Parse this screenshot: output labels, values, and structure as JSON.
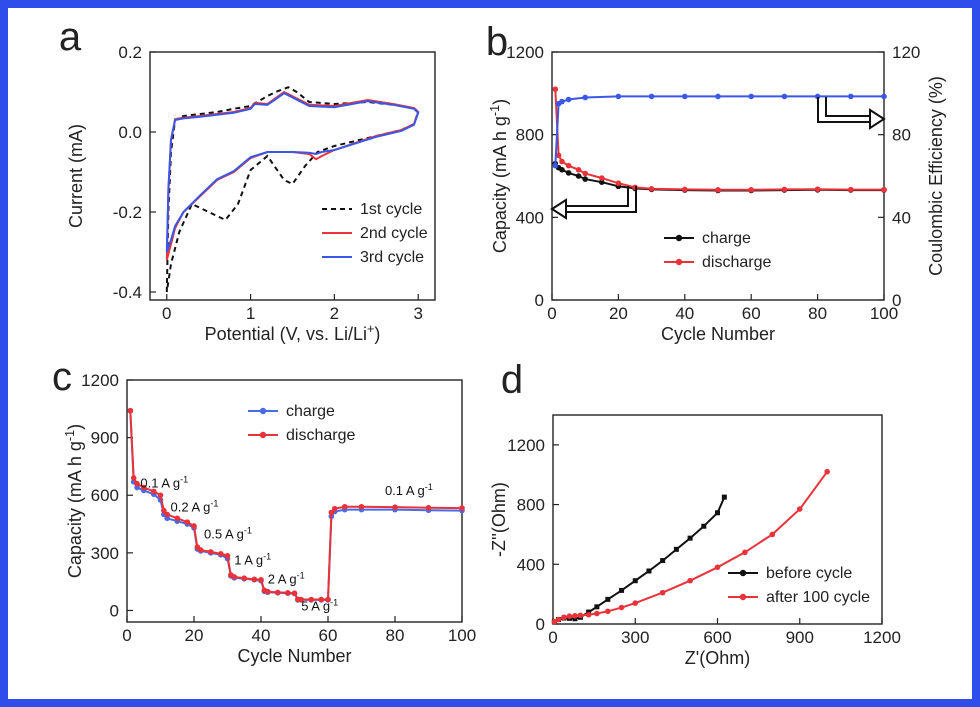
{
  "chart_data": [
    {
      "panel": "a",
      "type": "line",
      "xlabel": "Potential (V, vs. Li/Li",
      "xlabel_sup": "+",
      "xlabel_end": ")",
      "ylabel": "Current (mA)",
      "xlim": [
        -0.2,
        3.2
      ],
      "ylim": [
        -0.42,
        0.2
      ],
      "xticks": [
        0,
        1,
        2,
        3
      ],
      "yticks": [
        0.2,
        0.0,
        -0.2,
        -0.4
      ],
      "ytick_labels": [
        "0.2",
        "0.0",
        "-0.2",
        "-0.4"
      ],
      "legend_position": "bottom-right",
      "series": [
        {
          "name": "1st cycle",
          "color": "#111111",
          "style": "dashed",
          "x": [
            0.0,
            0.02,
            0.05,
            0.1,
            0.2,
            0.4,
            0.6,
            0.8,
            1.0,
            1.2,
            1.3,
            1.45,
            1.55,
            1.7,
            2.0,
            2.4,
            2.7,
            2.95,
            3.0,
            2.95,
            2.8,
            2.5,
            2.0,
            1.8,
            1.65,
            1.5,
            1.4,
            1.2,
            1.0,
            0.85,
            0.7,
            0.5,
            0.3,
            0.15,
            0.05,
            0.0
          ],
          "y": [
            -0.4,
            -0.2,
            -0.05,
            0.03,
            0.04,
            0.045,
            0.05,
            0.058,
            0.065,
            0.09,
            0.1,
            0.112,
            0.1,
            0.075,
            0.07,
            0.075,
            0.068,
            0.06,
            0.05,
            0.02,
            0.005,
            -0.01,
            -0.035,
            -0.05,
            -0.085,
            -0.13,
            -0.12,
            -0.06,
            -0.095,
            -0.18,
            -0.22,
            -0.2,
            -0.18,
            -0.25,
            -0.33,
            -0.4
          ]
        },
        {
          "name": "2nd cycle",
          "color": "#e8333a",
          "style": "solid",
          "x": [
            0.0,
            0.02,
            0.05,
            0.1,
            0.2,
            0.4,
            0.6,
            0.8,
            1.0,
            1.05,
            1.2,
            1.3,
            1.4,
            1.7,
            2.0,
            2.4,
            2.7,
            2.95,
            3.0,
            2.95,
            2.8,
            2.5,
            2.0,
            1.85,
            1.78,
            1.7,
            1.5,
            1.2,
            1.0,
            0.8,
            0.6,
            0.4,
            0.2,
            0.1,
            0.05,
            0.0
          ],
          "y": [
            -0.32,
            -0.15,
            -0.02,
            0.032,
            0.036,
            0.04,
            0.045,
            0.05,
            0.06,
            0.073,
            0.07,
            0.085,
            0.1,
            0.068,
            0.065,
            0.08,
            0.07,
            0.06,
            0.05,
            0.02,
            0.005,
            -0.01,
            -0.045,
            -0.06,
            -0.068,
            -0.055,
            -0.05,
            -0.05,
            -0.065,
            -0.1,
            -0.12,
            -0.16,
            -0.2,
            -0.24,
            -0.28,
            -0.32
          ]
        },
        {
          "name": "3rd cycle",
          "color": "#3a57e6",
          "style": "solid",
          "x": [
            0.0,
            0.02,
            0.05,
            0.1,
            0.2,
            0.4,
            0.6,
            0.8,
            1.0,
            1.05,
            1.2,
            1.3,
            1.4,
            1.7,
            2.0,
            2.4,
            2.7,
            2.95,
            3.0,
            2.95,
            2.8,
            2.5,
            2.0,
            1.85,
            1.78,
            1.7,
            1.5,
            1.2,
            1.0,
            0.8,
            0.6,
            0.4,
            0.2,
            0.1,
            0.05,
            0.0
          ],
          "y": [
            -0.3,
            -0.14,
            -0.02,
            0.03,
            0.034,
            0.038,
            0.043,
            0.048,
            0.058,
            0.07,
            0.068,
            0.082,
            0.097,
            0.065,
            0.062,
            0.077,
            0.068,
            0.058,
            0.048,
            0.018,
            0.003,
            -0.012,
            -0.045,
            -0.05,
            -0.055,
            -0.052,
            -0.05,
            -0.05,
            -0.063,
            -0.098,
            -0.118,
            -0.158,
            -0.2,
            -0.235,
            -0.27,
            -0.3
          ]
        }
      ]
    },
    {
      "panel": "b",
      "type": "line",
      "xlabel": "Cycle Number",
      "ylabel": "Capacity (mA h g",
      "ylabel_sup": "-1",
      "ylabel_end": ")",
      "y2label": "Coulombic Efficiency (%)",
      "xlim": [
        0,
        100
      ],
      "ylim": [
        0,
        1200
      ],
      "y2lim": [
        0,
        120
      ],
      "xticks": [
        0,
        20,
        40,
        60,
        80,
        100
      ],
      "yticks": [
        0,
        400,
        800,
        1200
      ],
      "y2ticks": [
        0,
        40,
        80,
        120
      ],
      "legend_position": "bottom-center",
      "series": [
        {
          "name": "charge",
          "color": "#111111",
          "axis": "left",
          "x": [
            1,
            2,
            3,
            5,
            8,
            10,
            15,
            20,
            25,
            30,
            40,
            50,
            60,
            70,
            80,
            90,
            100
          ],
          "y": [
            660,
            640,
            630,
            615,
            600,
            585,
            570,
            550,
            540,
            535,
            532,
            530,
            530,
            532,
            533,
            532,
            532
          ]
        },
        {
          "name": "discharge",
          "color": "#e8333a",
          "axis": "left",
          "x": [
            1,
            2,
            3,
            5,
            8,
            10,
            15,
            20,
            25,
            30,
            40,
            50,
            60,
            70,
            80,
            90,
            100
          ],
          "y": [
            1020,
            700,
            670,
            650,
            630,
            612,
            590,
            565,
            545,
            538,
            535,
            533,
            533,
            535,
            536,
            534,
            534
          ]
        },
        {
          "name": "",
          "color": "#3a57e6",
          "axis": "right",
          "x": [
            1,
            2,
            3,
            5,
            10,
            20,
            30,
            40,
            50,
            60,
            70,
            80,
            90,
            100
          ],
          "y": [
            65,
            95,
            96,
            97,
            98,
            98.5,
            98.5,
            98.5,
            98.5,
            98.5,
            98.5,
            98.5,
            98.5,
            98.5
          ]
        }
      ]
    },
    {
      "panel": "c",
      "type": "line",
      "xlabel": "Cycle Number",
      "ylabel": "Capacity (mA h g",
      "ylabel_sup": "-1",
      "ylabel_end": ")",
      "xlim": [
        0,
        100
      ],
      "ylim": [
        -60,
        1200
      ],
      "xticks": [
        0,
        20,
        40,
        60,
        80,
        100
      ],
      "yticks": [
        0,
        300,
        600,
        900,
        1200
      ],
      "legend_position": "top-center",
      "annotations": [
        {
          "text": "0.1 A g",
          "sup": "-1",
          "x": 4,
          "y": 640
        },
        {
          "text": "0.2 A g",
          "sup": "-1",
          "x": 13,
          "y": 515
        },
        {
          "text": "0.5 A g",
          "sup": "-1",
          "x": 23,
          "y": 375
        },
        {
          "text": "1 A g",
          "sup": "-1",
          "x": 32,
          "y": 240
        },
        {
          "text": "2 A g",
          "sup": "-1",
          "x": 42,
          "y": 140
        },
        {
          "text": "5 A g",
          "sup": "-1",
          "x": 52,
          "y": 0
        },
        {
          "text": "0.1 A g",
          "sup": "-1",
          "x": 77,
          "y": 600
        }
      ],
      "series": [
        {
          "name": "charge",
          "color": "#4a6be8",
          "x": [
            1,
            2,
            3,
            5,
            8,
            10,
            11,
            12,
            15,
            18,
            20,
            21,
            22,
            25,
            28,
            30,
            31,
            32,
            35,
            38,
            40,
            41,
            42,
            45,
            48,
            50,
            51,
            52,
            55,
            58,
            60,
            61,
            62,
            65,
            70,
            80,
            90,
            100
          ],
          "y": [
            1040,
            670,
            640,
            625,
            605,
            575,
            500,
            480,
            465,
            450,
            430,
            320,
            310,
            300,
            290,
            270,
            180,
            170,
            165,
            160,
            155,
            100,
            95,
            92,
            90,
            88,
            55,
            55,
            55,
            55,
            55,
            490,
            515,
            525,
            525,
            525,
            522,
            520
          ]
        },
        {
          "name": "discharge",
          "color": "#e8333a",
          "x": [
            1,
            2,
            3,
            5,
            8,
            10,
            11,
            12,
            15,
            18,
            20,
            21,
            22,
            25,
            28,
            30,
            31,
            32,
            35,
            38,
            40,
            41,
            42,
            45,
            48,
            50,
            51,
            52,
            55,
            58,
            60,
            61,
            62,
            65,
            70,
            80,
            90,
            100
          ],
          "y": [
            1040,
            690,
            660,
            640,
            620,
            600,
            520,
            500,
            480,
            460,
            440,
            330,
            315,
            305,
            295,
            285,
            185,
            175,
            168,
            162,
            160,
            105,
            98,
            94,
            92,
            90,
            58,
            57,
            57,
            57,
            57,
            510,
            530,
            540,
            540,
            538,
            535,
            533
          ]
        }
      ]
    },
    {
      "panel": "d",
      "type": "line",
      "xlabel": "Z'(Ohm)",
      "ylabel": "-Z''(Ohm)",
      "xlim": [
        0,
        1200
      ],
      "ylim": [
        0,
        1400
      ],
      "xticks": [
        0,
        300,
        600,
        900,
        1200
      ],
      "yticks": [
        0,
        400,
        800,
        1200
      ],
      "legend_position": "bottom-right",
      "series": [
        {
          "name": "before cycle",
          "color": "#111111",
          "x": [
            5,
            20,
            40,
            60,
            80,
            100,
            130,
            160,
            200,
            250,
            300,
            350,
            400,
            450,
            500,
            550,
            600,
            625
          ],
          "y": [
            15,
            30,
            40,
            38,
            35,
            45,
            80,
            115,
            165,
            225,
            290,
            355,
            425,
            500,
            575,
            655,
            745,
            850
          ]
        },
        {
          "name": "after 100 cycle",
          "color": "#e8333a",
          "x": [
            5,
            20,
            40,
            60,
            80,
            100,
            130,
            160,
            200,
            250,
            300,
            400,
            500,
            600,
            700,
            800,
            900,
            1000
          ],
          "y": [
            15,
            30,
            45,
            52,
            55,
            58,
            62,
            70,
            85,
            110,
            140,
            210,
            290,
            380,
            480,
            600,
            770,
            1020
          ]
        }
      ]
    }
  ]
}
